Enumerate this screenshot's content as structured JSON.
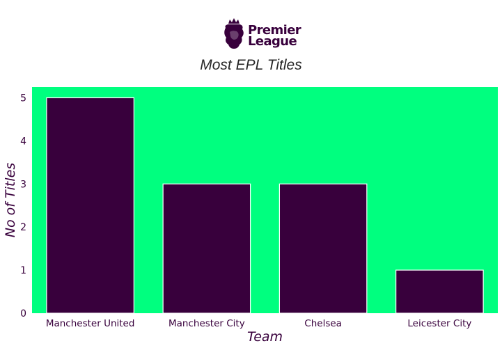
{
  "logo": {
    "line1": "Premier",
    "line2": "League",
    "icon": "premier-league-lion-icon"
  },
  "colors": {
    "plot_background": "#00ff7f",
    "bar_fill": "#38003c",
    "bar_edge": "#ffffff",
    "text": "#38003c",
    "title_text": "#262626"
  },
  "chart_data": {
    "type": "bar",
    "title": "Most EPL Titles",
    "xlabel": "Team",
    "ylabel": "No of Titles",
    "categories": [
      "Manchester United",
      "Manchester City",
      "Chelsea",
      "Leicester City"
    ],
    "values": [
      5,
      3,
      3,
      1
    ],
    "ylim": [
      0,
      5.25
    ],
    "yticks": [
      0,
      1,
      2,
      3,
      4,
      5
    ],
    "grid": false,
    "legend": "none"
  }
}
